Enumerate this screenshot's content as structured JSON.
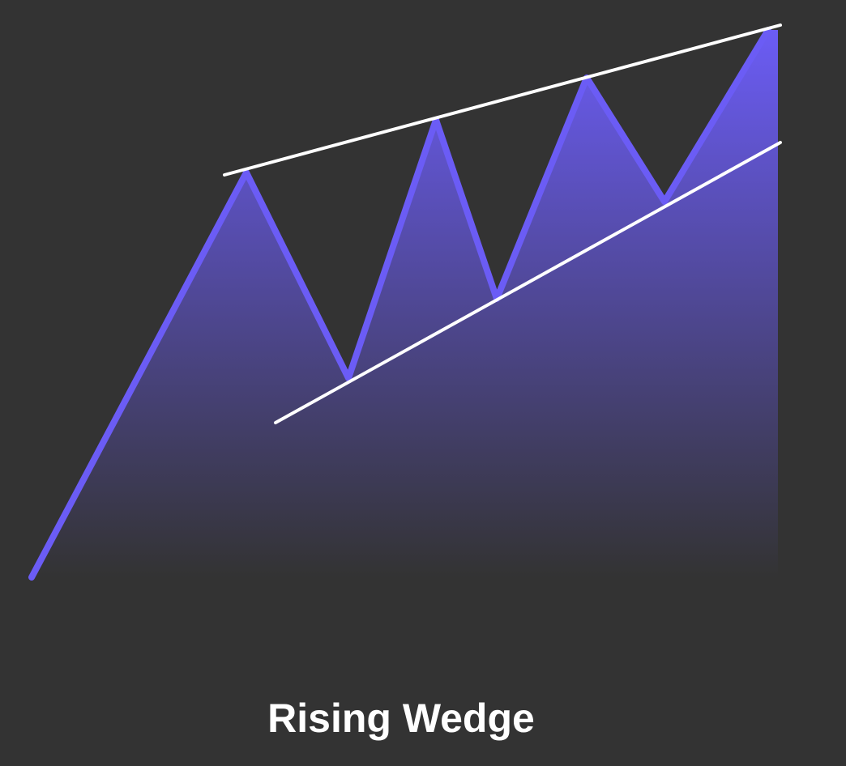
{
  "caption": "Rising Wedge",
  "colors": {
    "background": "#333333",
    "price_line": "#6B5CF5",
    "fill_top": "#6B5CF5",
    "fill_bottom": "#333333",
    "trendlines": "#FFFFFF",
    "caption_text": "#FFFFFF"
  }
}
